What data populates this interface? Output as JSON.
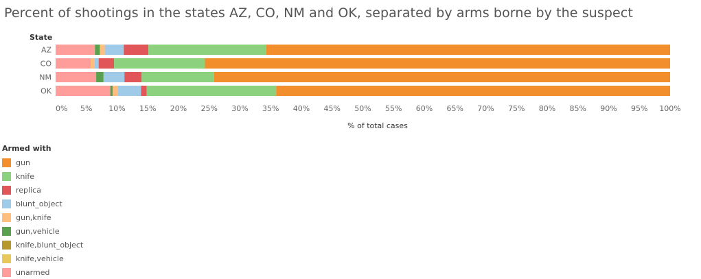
{
  "title": "Percent of shootings in the states AZ, CO, NM and OK, separated by arms borne by the suspect",
  "chart_data": {
    "type": "bar",
    "orientation": "horizontal",
    "stacked": true,
    "row_header": "State",
    "categories": [
      "AZ",
      "CO",
      "NM",
      "OK"
    ],
    "xlabel": "% of total cases",
    "xlim": [
      0,
      100
    ],
    "xticks": [
      "0%",
      "5%",
      "10%",
      "15%",
      "20%",
      "25%",
      "30%",
      "35%",
      "40%",
      "45%",
      "50%",
      "55%",
      "60%",
      "65%",
      "70%",
      "75%",
      "80%",
      "85%",
      "90%",
      "95%",
      "100%"
    ],
    "legend_title": "Armed with",
    "legend_placement": "bottom-left",
    "series": [
      {
        "name": "unarmed",
        "color": "#ff9d9a",
        "values": [
          6.4,
          5.7,
          6.6,
          8.9
        ]
      },
      {
        "name": "knife,vehicle",
        "color": "#e9c85a",
        "values": [
          0,
          0,
          0,
          0
        ]
      },
      {
        "name": "knife,blunt_object",
        "color": "#b6992d",
        "values": [
          0,
          0,
          0,
          0
        ]
      },
      {
        "name": "gun,vehicle",
        "color": "#59a14f",
        "values": [
          0.8,
          0,
          1.2,
          0.4
        ]
      },
      {
        "name": "gun,knife",
        "color": "#ffbe7d",
        "values": [
          0.8,
          0.6,
          0,
          0.8
        ]
      },
      {
        "name": "blunt_object",
        "color": "#a0cbe8",
        "values": [
          3.1,
          0.7,
          3.4,
          3.8
        ]
      },
      {
        "name": "replica",
        "color": "#e15759",
        "values": [
          4.0,
          2.5,
          2.8,
          0.9
        ]
      },
      {
        "name": "knife",
        "color": "#8cd17d",
        "values": [
          19.2,
          14.8,
          11.8,
          21.1
        ]
      },
      {
        "name": "gun",
        "color": "#f28e2b",
        "values": [
          65.7,
          75.7,
          74.2,
          64.1
        ]
      }
    ],
    "legend_order": [
      "gun",
      "knife",
      "replica",
      "blunt_object",
      "gun,knife",
      "gun,vehicle",
      "knife,blunt_object",
      "knife,vehicle",
      "unarmed"
    ]
  }
}
